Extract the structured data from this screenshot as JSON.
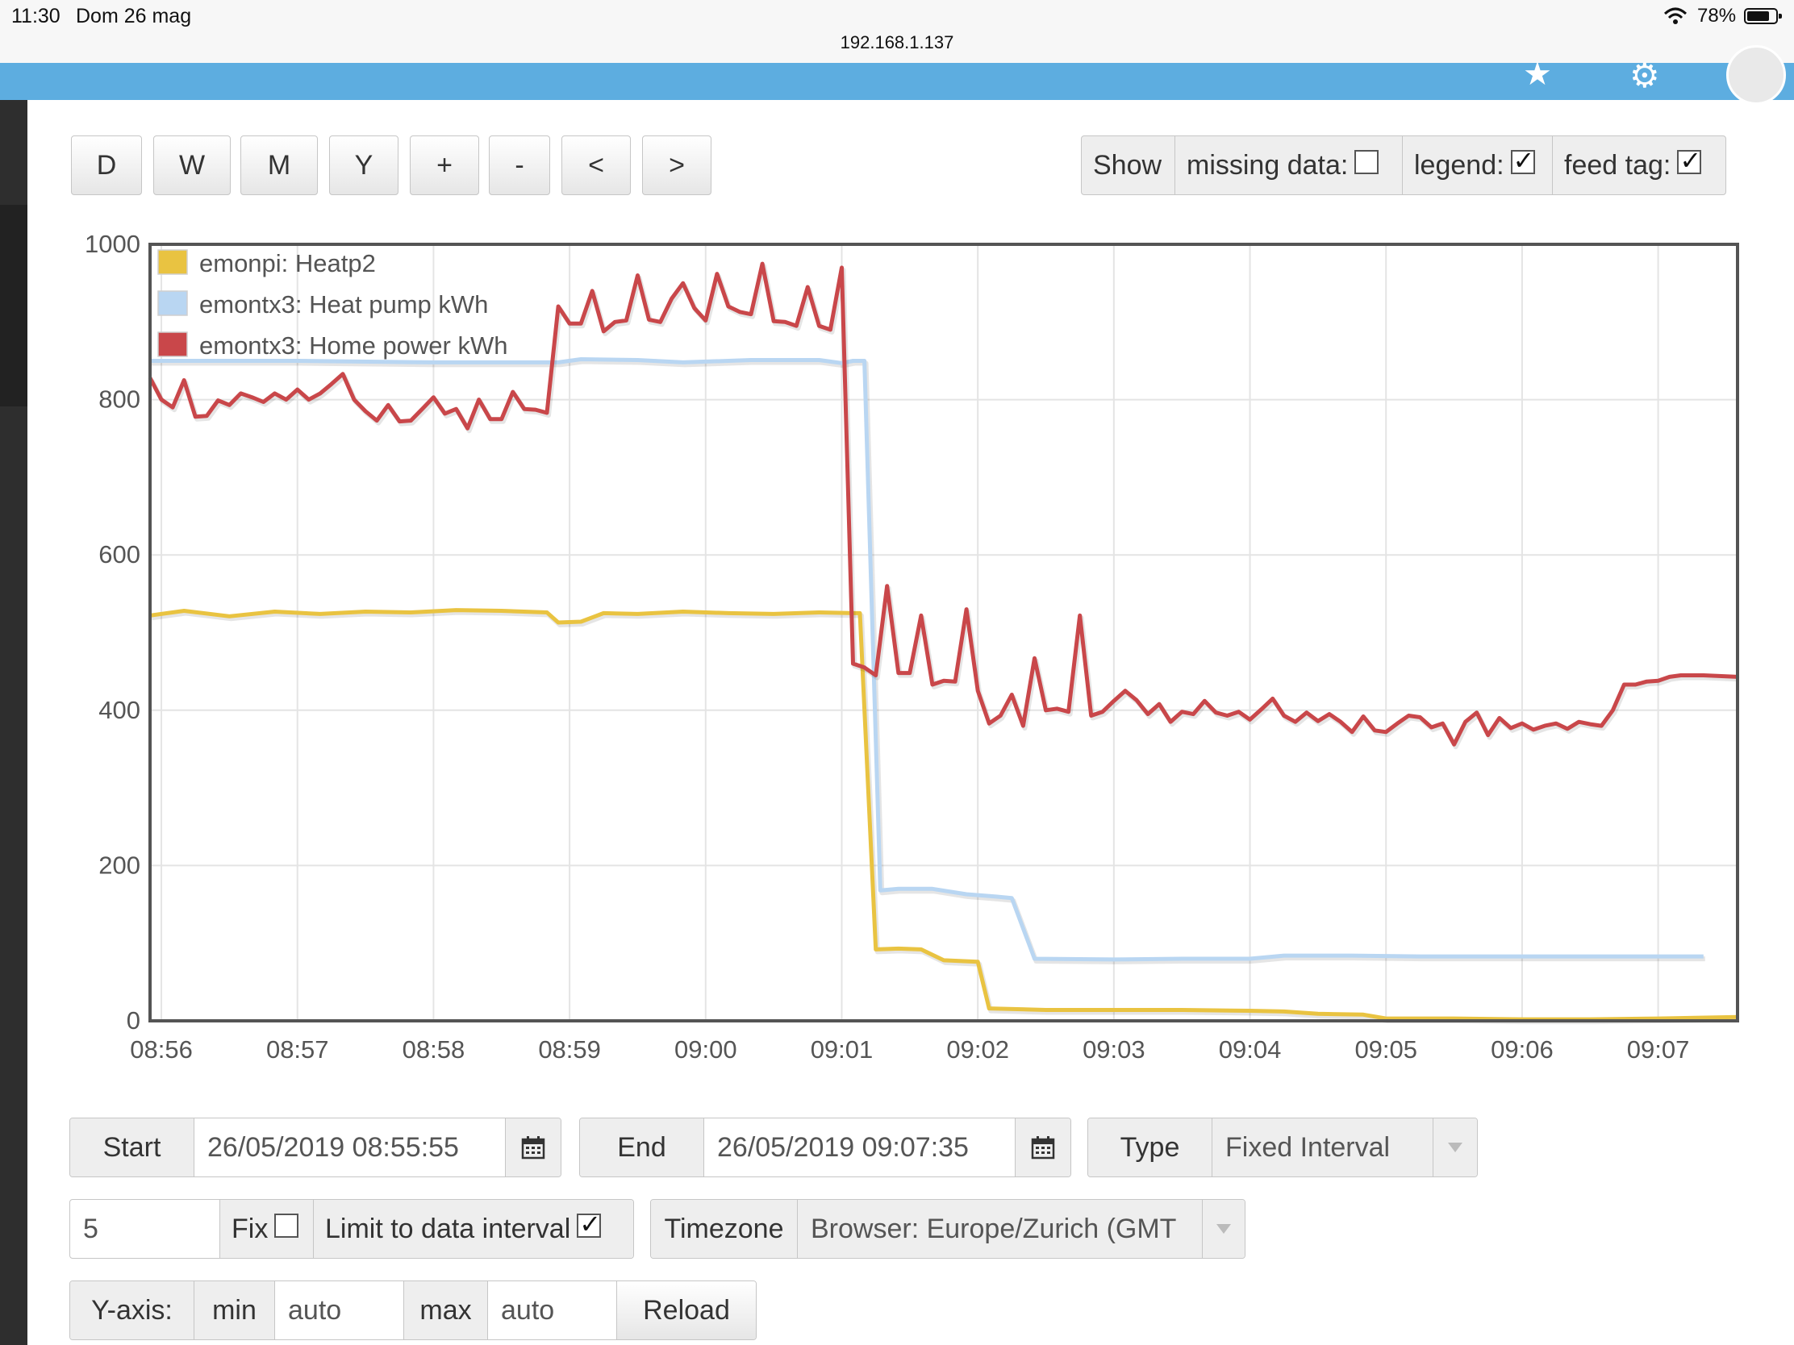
{
  "statusbar": {
    "time": "11:30",
    "date": "Dom 26 mag",
    "url": "192.168.1.137",
    "battery": "78%",
    "battery_level": 0.78
  },
  "toolbar": {
    "range_buttons": [
      "D",
      "W",
      "M",
      "Y",
      "+",
      "-",
      "<",
      ">"
    ],
    "show_label": "Show",
    "missing_data_label": "missing data:",
    "missing_data_checked": false,
    "legend_label": "legend:",
    "legend_checked": true,
    "feed_tag_label": "feed tag:",
    "feed_tag_checked": true
  },
  "chart_data": {
    "type": "line",
    "title": "",
    "xlabel": "",
    "ylabel": "",
    "ylim": [
      0,
      1000
    ],
    "xlim": [
      "08:55:55",
      "09:07:35"
    ],
    "x_ticks": [
      "08:56",
      "08:57",
      "08:58",
      "08:59",
      "09:00",
      "09:01",
      "09:02",
      "09:03",
      "09:04",
      "09:05",
      "09:06",
      "09:07"
    ],
    "y_ticks": [
      "0",
      "200",
      "400",
      "600",
      "800",
      "1000"
    ],
    "grid": true,
    "legend_position": "top-left",
    "series": [
      {
        "name": "emonpi: Heatp2",
        "color": "#e9c341",
        "points": [
          [
            "08:55:55",
            522
          ],
          [
            "08:56:10",
            528
          ],
          [
            "08:56:30",
            521
          ],
          [
            "08:56:50",
            527
          ],
          [
            "08:57:10",
            524
          ],
          [
            "08:57:30",
            527
          ],
          [
            "08:57:50",
            526
          ],
          [
            "08:58:10",
            529
          ],
          [
            "08:58:30",
            528
          ],
          [
            "08:58:50",
            526
          ],
          [
            "08:58:55",
            513
          ],
          [
            "08:59:05",
            514
          ],
          [
            "08:59:15",
            525
          ],
          [
            "08:59:30",
            524
          ],
          [
            "08:59:50",
            527
          ],
          [
            "09:00:10",
            525
          ],
          [
            "09:00:30",
            524
          ],
          [
            "09:00:50",
            526
          ],
          [
            "09:01:05",
            525
          ],
          [
            "09:01:08",
            525
          ],
          [
            "09:01:15",
            92
          ],
          [
            "09:01:25",
            93
          ],
          [
            "09:01:35",
            92
          ],
          [
            "09:01:45",
            78
          ],
          [
            "09:02:00",
            76
          ],
          [
            "09:02:05",
            16
          ],
          [
            "09:02:30",
            14
          ],
          [
            "09:03:00",
            14
          ],
          [
            "09:03:30",
            14
          ],
          [
            "09:04:00",
            13
          ],
          [
            "09:04:15",
            12
          ],
          [
            "09:04:30",
            9
          ],
          [
            "09:04:50",
            8
          ],
          [
            "09:05:00",
            3
          ],
          [
            "09:05:30",
            3
          ],
          [
            "09:06:00",
            2
          ],
          [
            "09:06:30",
            2
          ],
          [
            "09:07:00",
            3
          ],
          [
            "09:07:35",
            5
          ]
        ]
      },
      {
        "name": "emontx3: Heat pump kWh",
        "color": "#b9d6f2",
        "points": [
          [
            "08:55:55",
            850
          ],
          [
            "08:57:00",
            850
          ],
          [
            "08:58:00",
            848
          ],
          [
            "08:58:55",
            848
          ],
          [
            "08:59:05",
            852
          ],
          [
            "08:59:30",
            851
          ],
          [
            "08:59:50",
            848
          ],
          [
            "09:00:20",
            851
          ],
          [
            "09:00:50",
            851
          ],
          [
            "09:01:00",
            847
          ],
          [
            "09:01:05",
            850
          ],
          [
            "09:01:10",
            850
          ],
          [
            "09:01:17",
            168
          ],
          [
            "09:01:25",
            170
          ],
          [
            "09:01:40",
            170
          ],
          [
            "09:01:55",
            163
          ],
          [
            "09:02:08",
            160
          ],
          [
            "09:02:15",
            158
          ],
          [
            "09:02:25",
            80
          ],
          [
            "09:03:00",
            79
          ],
          [
            "09:03:30",
            80
          ],
          [
            "09:04:00",
            80
          ],
          [
            "09:04:15",
            84
          ],
          [
            "09:04:45",
            84
          ],
          [
            "09:05:15",
            83
          ],
          [
            "09:05:45",
            83
          ],
          [
            "09:06:15",
            83
          ],
          [
            "09:06:45",
            83
          ],
          [
            "09:07:20",
            83
          ]
        ]
      },
      {
        "name": "emontx3: Home power kWh",
        "color": "#c9474a",
        "points": [
          [
            "08:55:55",
            828
          ],
          [
            "08:56:00",
            800
          ],
          [
            "08:56:05",
            790
          ],
          [
            "08:56:10",
            825
          ],
          [
            "08:56:15",
            778
          ],
          [
            "08:56:20",
            779
          ],
          [
            "08:56:25",
            799
          ],
          [
            "08:56:30",
            793
          ],
          [
            "08:56:35",
            808
          ],
          [
            "08:56:40",
            803
          ],
          [
            "08:56:45",
            797
          ],
          [
            "08:56:50",
            808
          ],
          [
            "08:56:55",
            800
          ],
          [
            "08:57:00",
            813
          ],
          [
            "08:57:05",
            800
          ],
          [
            "08:57:10",
            808
          ],
          [
            "08:57:15",
            820
          ],
          [
            "08:57:20",
            833
          ],
          [
            "08:57:25",
            800
          ],
          [
            "08:57:30",
            785
          ],
          [
            "08:57:35",
            773
          ],
          [
            "08:57:40",
            793
          ],
          [
            "08:57:45",
            772
          ],
          [
            "08:57:50",
            773
          ],
          [
            "08:57:55",
            788
          ],
          [
            "08:58:00",
            803
          ],
          [
            "08:58:05",
            782
          ],
          [
            "08:58:10",
            788
          ],
          [
            "08:58:15",
            763
          ],
          [
            "08:58:20",
            800
          ],
          [
            "08:58:25",
            775
          ],
          [
            "08:58:30",
            775
          ],
          [
            "08:58:35",
            810
          ],
          [
            "08:58:40",
            788
          ],
          [
            "08:58:45",
            787
          ],
          [
            "08:58:50",
            783
          ],
          [
            "08:58:55",
            920
          ],
          [
            "08:59:00",
            898
          ],
          [
            "08:59:05",
            898
          ],
          [
            "08:59:10",
            940
          ],
          [
            "08:59:15",
            888
          ],
          [
            "08:59:20",
            900
          ],
          [
            "08:59:25",
            902
          ],
          [
            "08:59:30",
            960
          ],
          [
            "08:59:35",
            903
          ],
          [
            "08:59:40",
            900
          ],
          [
            "08:59:45",
            930
          ],
          [
            "08:59:50",
            950
          ],
          [
            "08:59:55",
            918
          ],
          [
            "09:00:00",
            902
          ],
          [
            "09:00:05",
            962
          ],
          [
            "09:00:10",
            920
          ],
          [
            "09:00:15",
            913
          ],
          [
            "09:00:20",
            910
          ],
          [
            "09:00:25",
            975
          ],
          [
            "09:00:30",
            901
          ],
          [
            "09:00:35",
            900
          ],
          [
            "09:00:40",
            895
          ],
          [
            "09:00:45",
            945
          ],
          [
            "09:00:50",
            895
          ],
          [
            "09:00:55",
            890
          ],
          [
            "09:01:00",
            970
          ],
          [
            "09:01:05",
            460
          ],
          [
            "09:01:10",
            455
          ],
          [
            "09:01:15",
            445
          ],
          [
            "09:01:20",
            560
          ],
          [
            "09:01:25",
            448
          ],
          [
            "09:01:30",
            448
          ],
          [
            "09:01:35",
            522
          ],
          [
            "09:01:40",
            433
          ],
          [
            "09:01:45",
            438
          ],
          [
            "09:01:50",
            437
          ],
          [
            "09:01:55",
            530
          ],
          [
            "09:02:00",
            425
          ],
          [
            "09:02:05",
            383
          ],
          [
            "09:02:10",
            393
          ],
          [
            "09:02:15",
            420
          ],
          [
            "09:02:20",
            380
          ],
          [
            "09:02:25",
            467
          ],
          [
            "09:02:30",
            400
          ],
          [
            "09:02:35",
            402
          ],
          [
            "09:02:40",
            398
          ],
          [
            "09:02:45",
            522
          ],
          [
            "09:02:50",
            393
          ],
          [
            "09:02:55",
            398
          ],
          [
            "09:03:00",
            412
          ],
          [
            "09:03:05",
            425
          ],
          [
            "09:03:10",
            413
          ],
          [
            "09:03:15",
            395
          ],
          [
            "09:03:20",
            408
          ],
          [
            "09:03:25",
            385
          ],
          [
            "09:03:30",
            398
          ],
          [
            "09:03:35",
            395
          ],
          [
            "09:03:40",
            412
          ],
          [
            "09:03:45",
            397
          ],
          [
            "09:03:50",
            393
          ],
          [
            "09:03:55",
            398
          ],
          [
            "09:04:00",
            388
          ],
          [
            "09:04:05",
            401
          ],
          [
            "09:04:10",
            415
          ],
          [
            "09:04:15",
            393
          ],
          [
            "09:04:20",
            385
          ],
          [
            "09:04:25",
            397
          ],
          [
            "09:04:30",
            386
          ],
          [
            "09:04:35",
            395
          ],
          [
            "09:04:40",
            385
          ],
          [
            "09:04:45",
            372
          ],
          [
            "09:04:50",
            392
          ],
          [
            "09:04:55",
            374
          ],
          [
            "09:05:00",
            372
          ],
          [
            "09:05:05",
            383
          ],
          [
            "09:05:10",
            393
          ],
          [
            "09:05:15",
            391
          ],
          [
            "09:05:20",
            378
          ],
          [
            "09:05:25",
            383
          ],
          [
            "09:05:30",
            356
          ],
          [
            "09:05:35",
            385
          ],
          [
            "09:05:40",
            397
          ],
          [
            "09:05:45",
            368
          ],
          [
            "09:05:50",
            390
          ],
          [
            "09:05:55",
            377
          ],
          [
            "09:06:00",
            383
          ],
          [
            "09:06:05",
            375
          ],
          [
            "09:06:10",
            380
          ],
          [
            "09:06:15",
            383
          ],
          [
            "09:06:20",
            376
          ],
          [
            "09:06:25",
            385
          ],
          [
            "09:06:30",
            382
          ],
          [
            "09:06:35",
            380
          ],
          [
            "09:06:40",
            400
          ],
          [
            "09:06:45",
            433
          ],
          [
            "09:06:50",
            433
          ],
          [
            "09:06:55",
            437
          ],
          [
            "09:07:00",
            438
          ],
          [
            "09:07:05",
            443
          ],
          [
            "09:07:10",
            445
          ],
          [
            "09:07:20",
            445
          ],
          [
            "09:07:35",
            443
          ]
        ]
      }
    ]
  },
  "controls": {
    "start_label": "Start",
    "start_value": "26/05/2019 08:55:55",
    "end_label": "End",
    "end_value": "26/05/2019 09:07:35",
    "type_label": "Type",
    "type_value": "Fixed Interval",
    "interval_value": "5",
    "fix_label": "Fix",
    "fix_checked": false,
    "limit_label": "Limit to data interval",
    "limit_checked": true,
    "timezone_label": "Timezone",
    "timezone_value": "Browser: Europe/Zurich (GMT",
    "yaxis_label": "Y-axis:",
    "min_label": "min",
    "min_value": "auto",
    "max_label": "max",
    "max_value": "auto",
    "reload_label": "Reload"
  },
  "icons": {
    "nav": [
      "star-icon",
      "gear-icon",
      "user-avatar-icon"
    ],
    "calendar": "calendar-icon",
    "dropdown": "chevron-down-icon"
  }
}
